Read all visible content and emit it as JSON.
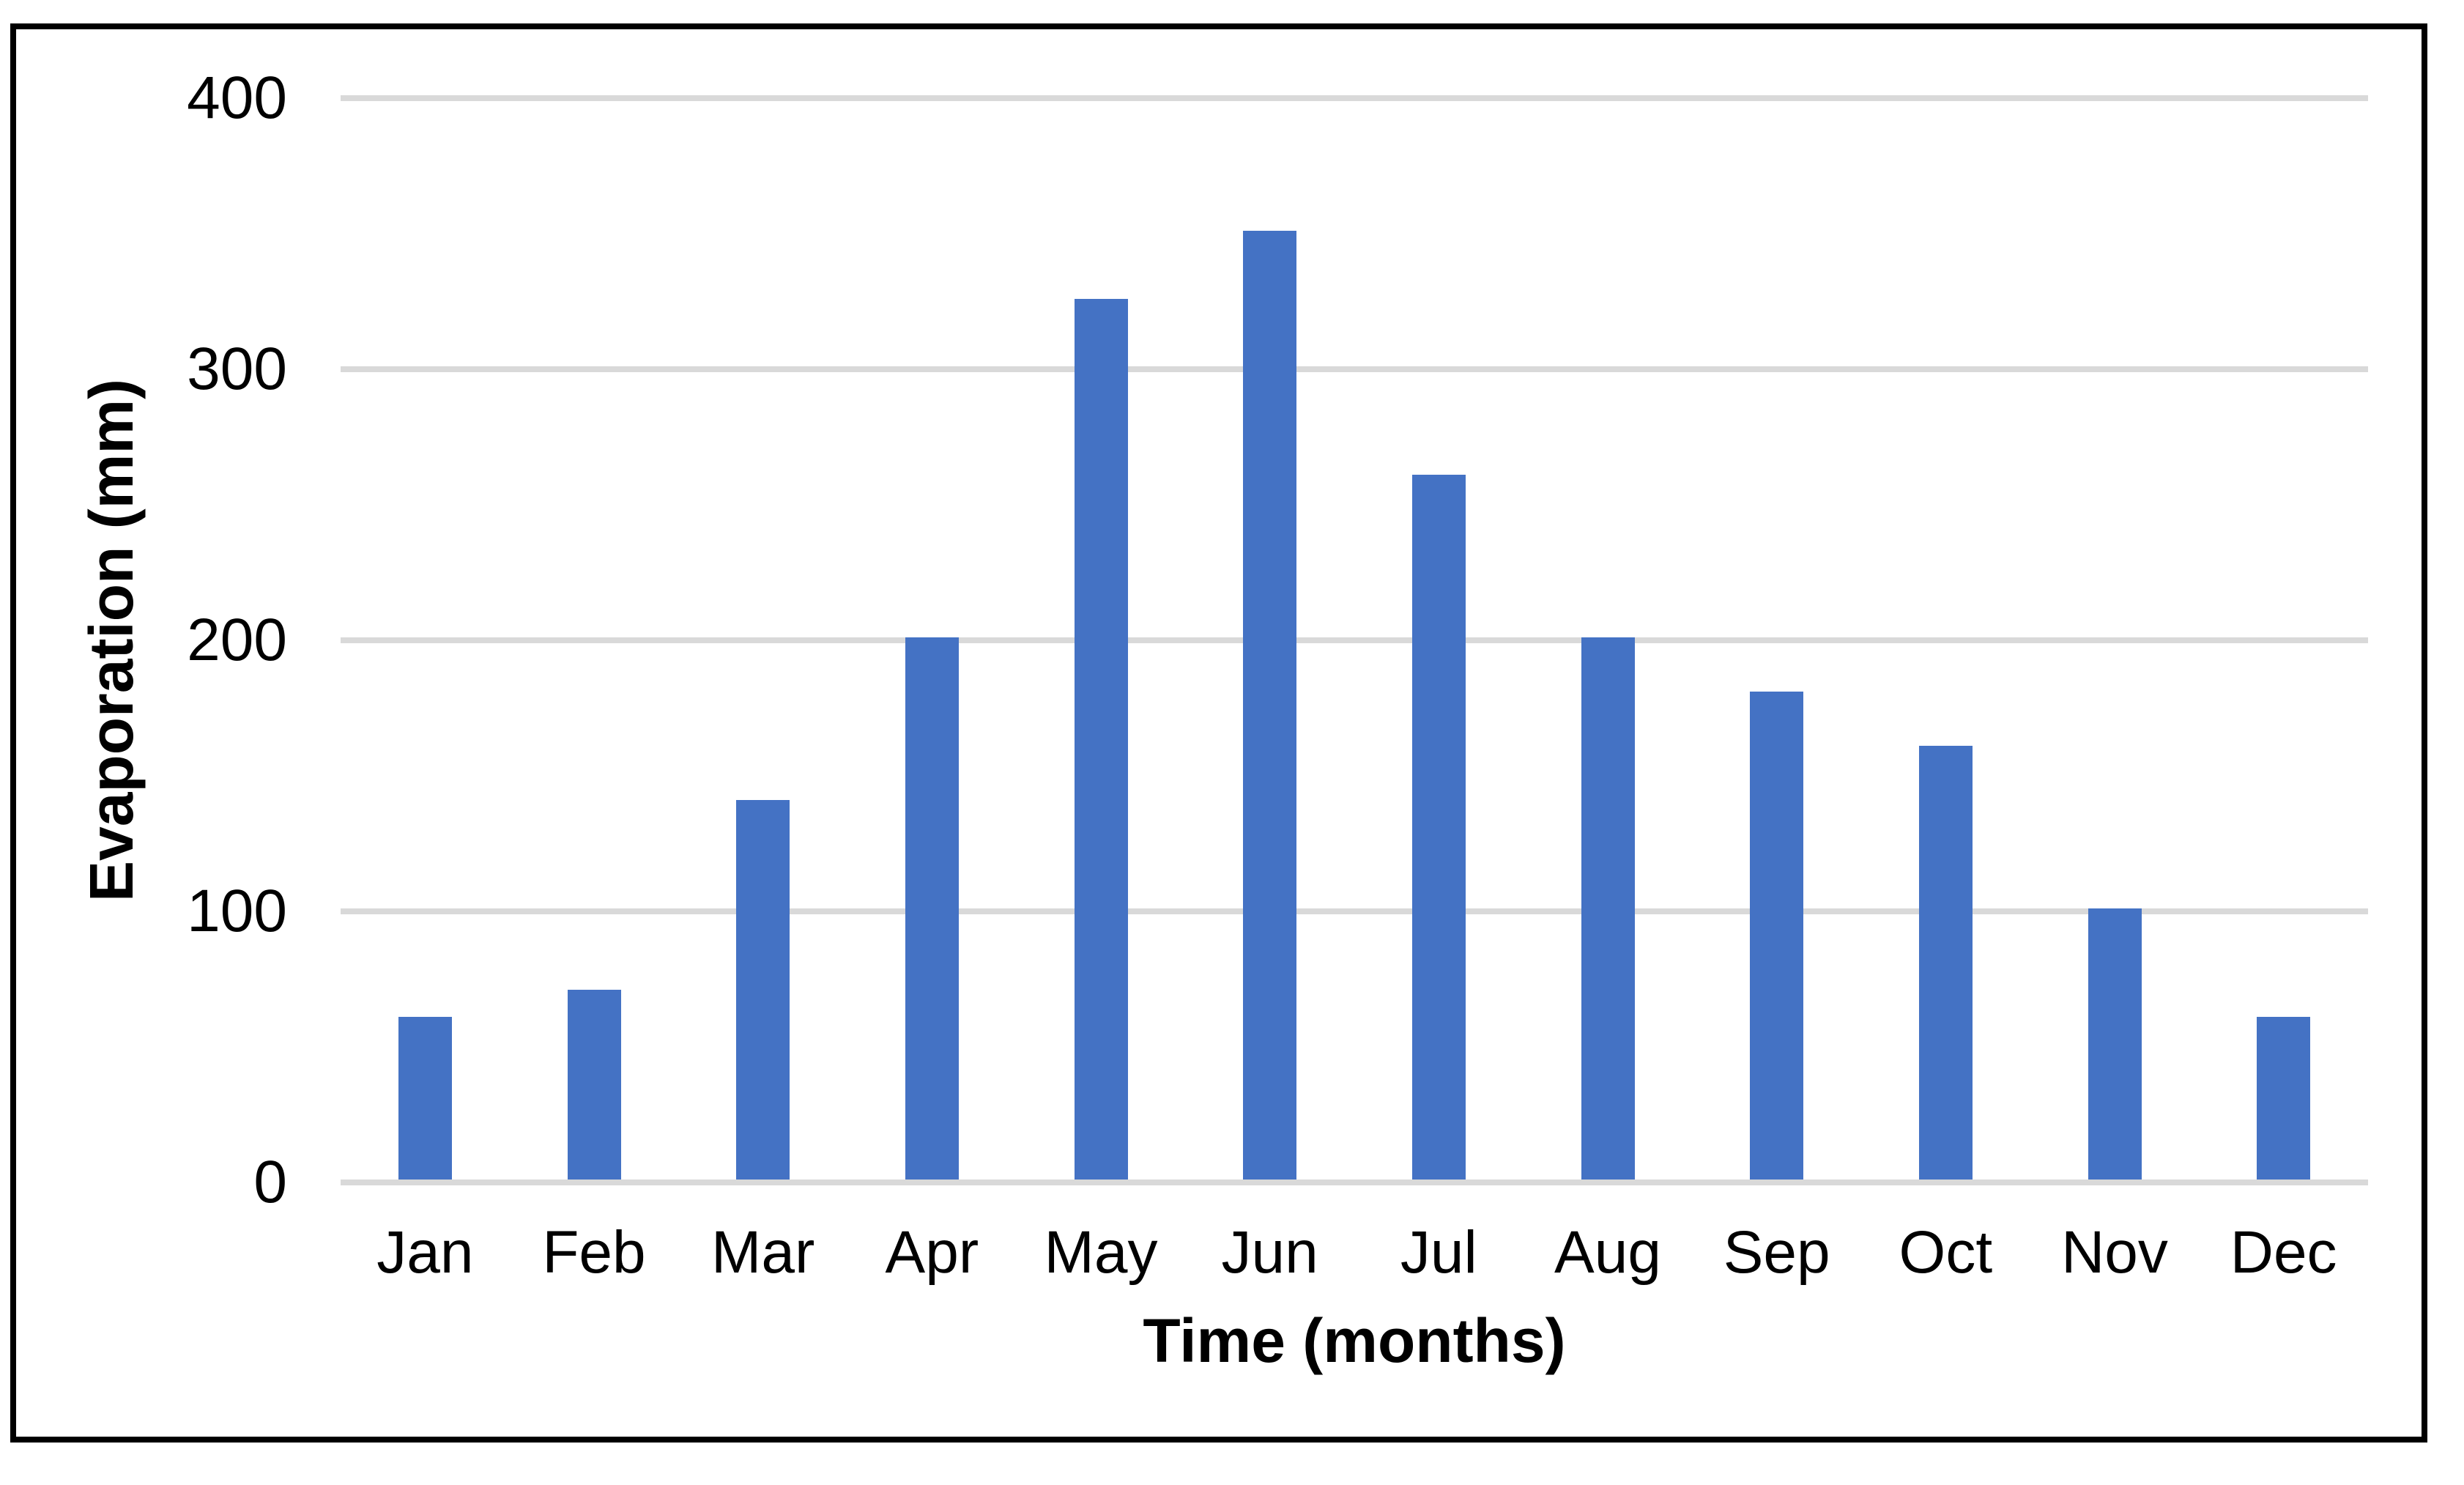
{
  "chart_data": {
    "type": "bar",
    "title": "",
    "categories": [
      "Jan",
      "Feb",
      "Mar",
      "Apr",
      "May",
      "Jun",
      "Jul",
      "Aug",
      "Sep",
      "Oct",
      "Nov",
      "Dec"
    ],
    "values": [
      60,
      70,
      140,
      200,
      325,
      350,
      260,
      200,
      180,
      160,
      100,
      60
    ],
    "xlabel": "Time (months)",
    "ylabel": "Evaporation (mm)",
    "ylim": [
      0,
      400
    ],
    "y_ticks": [
      400,
      300,
      200,
      100,
      0
    ],
    "grid": "horizontal-only",
    "legend": "none",
    "colors": {
      "bar": "#4472C4",
      "gridline": "#D9D9D9",
      "axis_line": "#D9D9D9",
      "border": "#000000",
      "background": "#FFFFFF",
      "text": "#000000"
    }
  }
}
